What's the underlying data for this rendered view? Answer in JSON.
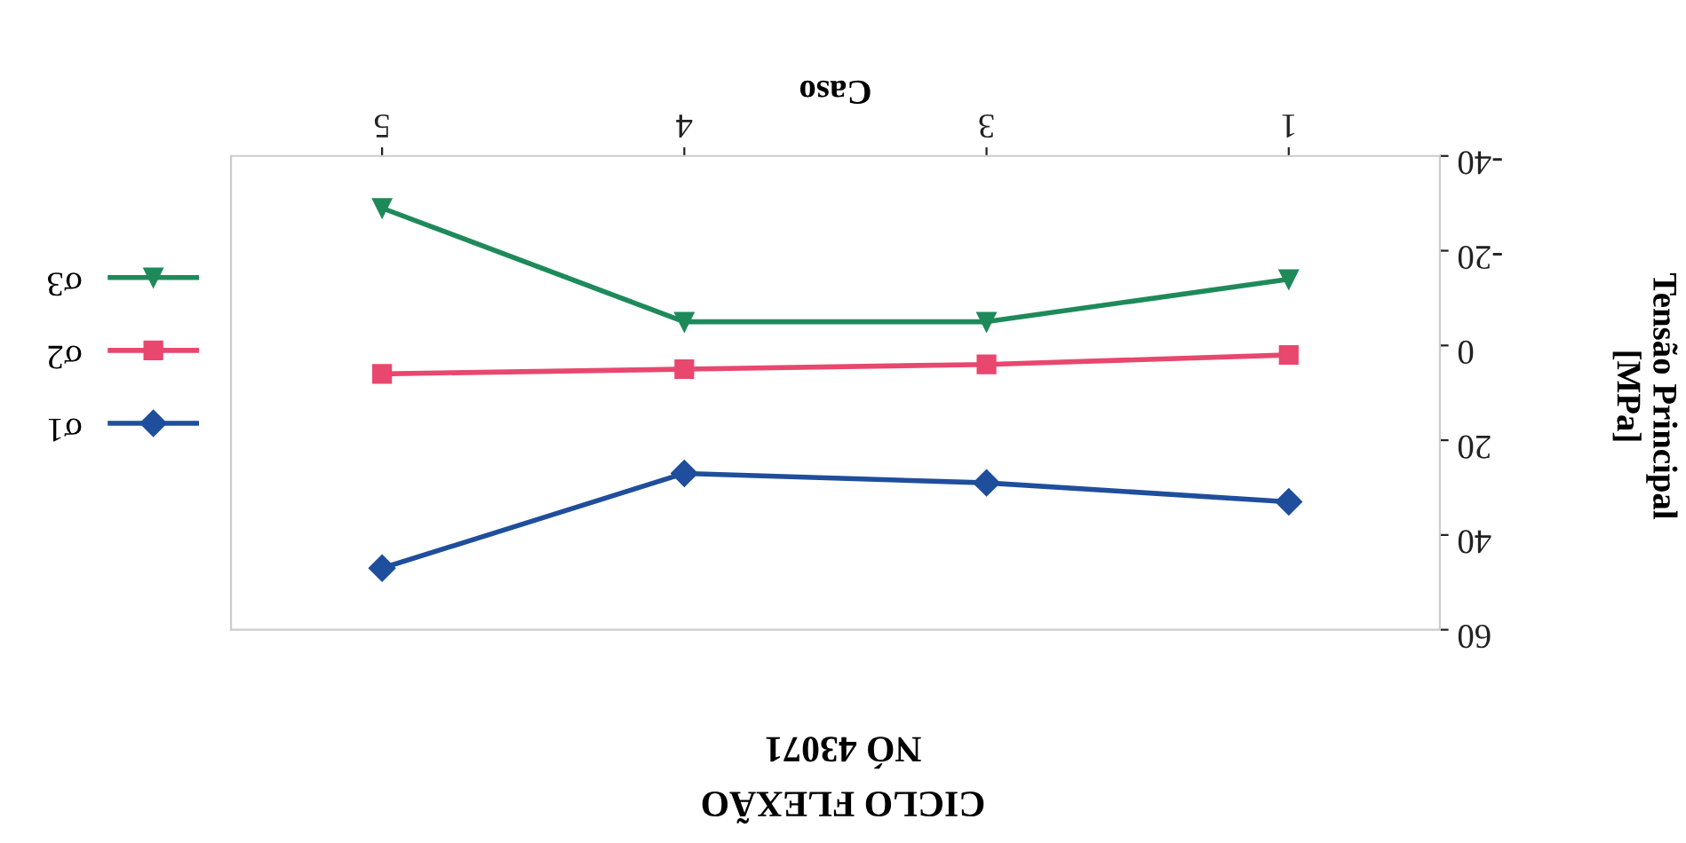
{
  "chart_data": {
    "type": "line",
    "title": "CICLO FLEXÃO",
    "subtitle": "NÓ 43071",
    "xlabel": "Caso",
    "ylabel": "Tensão Principal\n[MPa]",
    "categories": [
      "5",
      "4",
      "3",
      "1"
    ],
    "series": [
      {
        "name": "σ1",
        "color": "#1f4e9c",
        "marker": "diamond",
        "values": [
          47,
          27,
          29,
          33
        ]
      },
      {
        "name": "σ2",
        "color": "#e8476e",
        "marker": "square",
        "values": [
          6,
          5,
          4,
          2
        ]
      },
      {
        "name": "σ3",
        "color": "#1e8a5a",
        "marker": "triangle",
        "values": [
          -29,
          -5,
          -5,
          -14
        ]
      }
    ],
    "ylim": [
      60,
      -40
    ],
    "yticks": [
      60,
      40,
      20,
      0,
      -20,
      -40
    ],
    "grid": false,
    "legend": "left",
    "line_style": "solid"
  }
}
